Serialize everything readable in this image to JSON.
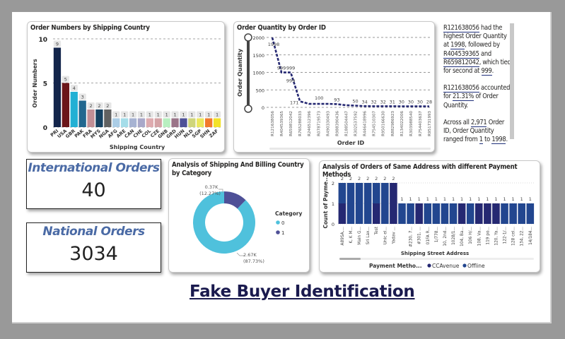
{
  "dashboard_title": "Fake Buyer Identification",
  "kpis": {
    "international": {
      "label": "International Orders",
      "value": "40"
    },
    "national": {
      "label": "National Orders",
      "value": "3034"
    }
  },
  "narrative": {
    "p1": {
      "id1": "R121638056",
      "t1": " had the highest Order Quantity at ",
      "v1": "1998",
      "t2": ", followed by ",
      "id2": "R404539365",
      "t3": " and ",
      "id3": "R659812042",
      "t4": ", which tied for second at ",
      "v2": "999",
      "t5": "."
    },
    "p2": {
      "id1": "R121638056",
      "t1": " accounted for ",
      "v1": "21.31%",
      "t2": " of Order Quantity."
    },
    "p3": {
      "t0": "Across all ",
      "v1": "2,971",
      "t1": " Order ID, Order Quantity ranged from ",
      "v2": "1",
      "t2": " to ",
      "v3": "1998",
      "t3": "."
    }
  },
  "colors": {
    "primary_dark": "#12239e",
    "ccavenue": "#252872",
    "offline": "#22468f",
    "cat0": "#4fc1dc",
    "cat1": "#4e5097",
    "kpi_title": "#4a6aa5"
  },
  "chart_data": [
    {
      "id": "shipping-country",
      "type": "bar",
      "title": "Order Numbers by Shipping Country",
      "xlabel": "Shipping Country",
      "ylabel": "Order Numbers",
      "ylim": [
        0,
        10
      ],
      "yticks": [
        0,
        5,
        10
      ],
      "grid": true,
      "categories": [
        "PRI",
        "USA",
        "GBR",
        "PAK",
        "FRA",
        "MYS",
        "NGA",
        "AFG",
        "ARE",
        "CAN",
        "CHE",
        "COL",
        "CZE",
        "GNB",
        "GRD",
        "HUN",
        "NLD",
        "SGP",
        "SHN",
        "ZAF"
      ],
      "values": [
        9,
        5,
        4,
        3,
        2,
        2,
        2,
        1,
        1,
        1,
        1,
        1,
        1,
        1,
        1,
        1,
        1,
        1,
        1,
        1
      ],
      "bar_colors": [
        "#13254b",
        "#6b1519",
        "#21b0d4",
        "#21678f",
        "#c18f96",
        "#164262",
        "#616161",
        "#abcde6",
        "#a5dde9",
        "#a7b3d2",
        "#a9a8c9",
        "#deabaf",
        "#d4a3a6",
        "#b8efc0",
        "#9a7488",
        "#4e5197",
        "#cfd57a",
        "#ebe75d",
        "#f27a2c",
        "#f3e228"
      ]
    },
    {
      "id": "order-quantity",
      "type": "line",
      "title": "Order Quantity by Order ID",
      "xlabel": "Order ID",
      "ylabel": "Order Quantity",
      "ylim": [
        0,
        2000
      ],
      "yticks": [
        0,
        500,
        1000,
        1500,
        2000
      ],
      "grid": true,
      "categories": [
        "R121638056",
        "R404539365",
        "R659812042",
        "R765288033",
        "R246512396",
        "R078719573",
        "R490330493",
        "R988390436",
        "R188504447",
        "R302537592",
        "R446418996",
        "R754510307",
        "R950166630",
        "R882986923",
        "R134022006",
        "R303988540",
        "R754403637",
        "R951731993"
      ],
      "values": [
        1998,
        999,
        999,
        171,
        100,
        100,
        100,
        93,
        60,
        50,
        34,
        32,
        32,
        31,
        30,
        30,
        30,
        28
      ]
    },
    {
      "id": "shipping-billing",
      "type": "pie",
      "title": "Analysis of Shipping And Billing Country by Category",
      "legend_title": "Category",
      "legend_position": "right",
      "categories": [
        "0",
        "1"
      ],
      "values": [
        2670,
        370
      ],
      "labels": [
        {
          "value": "2.67K",
          "pct": "(87.73%)"
        },
        {
          "value": "0.37K",
          "pct": "(12.27%)"
        }
      ],
      "percentages": [
        87.73,
        12.27
      ]
    },
    {
      "id": "same-address",
      "type": "bar",
      "stacked": true,
      "title": "Analysis of Orders of Same Address with different Payment Methods",
      "xlabel": "Shipping Street Address",
      "ylabel": "Count of Payme...",
      "ylim": [
        0,
        2
      ],
      "yticks": [
        0,
        1,
        2
      ],
      "legend_title": "Payment Metho...",
      "legend_position": "bottom",
      "categories": [
        "A89SA,...",
        "K, K M...",
        "Main G...",
        "Sri Lax...",
        "Test",
        "Unic el...",
        "Yadav ...",
        "",
        "#230, 7...",
        "#301, ...",
        "01FA R...",
        "1/778...",
        "10, 2nd...",
        "1028/1...",
        "104, Ba...",
        "106 H/...",
        "108, Va...",
        "119 po...",
        "120, Ya...",
        "122-1/...",
        "128 cel...",
        "134, 22...",
        "14/184..."
      ],
      "series": [
        {
          "name": "CCAvenue",
          "values": [
            1,
            0,
            0,
            0,
            1,
            0,
            2,
            0,
            0,
            1,
            0,
            0,
            0,
            0,
            1,
            0,
            1,
            1,
            1,
            0,
            0,
            0,
            0
          ]
        },
        {
          "name": "Offline",
          "values": [
            1,
            2,
            2,
            2,
            1,
            2,
            0,
            1,
            1,
            0,
            1,
            1,
            1,
            1,
            0,
            1,
            0,
            0,
            0,
            1,
            1,
            1,
            1
          ]
        }
      ],
      "totals": [
        2,
        2,
        2,
        2,
        2,
        2,
        2,
        1,
        1,
        1,
        1,
        1,
        1,
        1,
        1,
        1,
        1,
        1,
        1,
        1,
        1,
        1,
        1
      ]
    }
  ]
}
